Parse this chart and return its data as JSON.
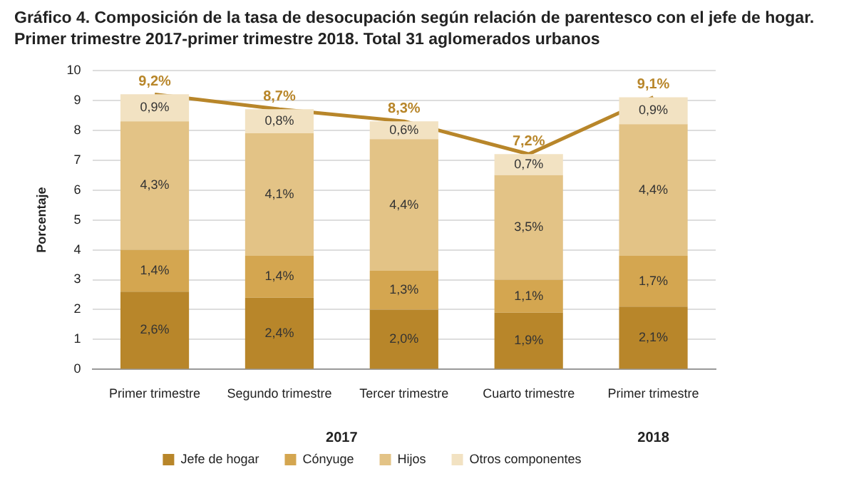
{
  "chart_data": {
    "type": "bar",
    "stacked": true,
    "title": "Gráfico 4.  Composición de la tasa de desocupación según relación de parentesco con el jefe de hogar.\nPrimer trimestre 2017-primer trimestre 2018. Total 31 aglomerados urbanos",
    "ylabel": "Porcentaje",
    "categories": [
      "Primer trimestre",
      "Segundo trimestre",
      "Tercer trimestre",
      "Cuarto trimestre",
      "Primer trimestre"
    ],
    "series": [
      {
        "name": "Jefe de hogar",
        "color": "#b8862a",
        "values": [
          2.6,
          2.4,
          2.0,
          1.9,
          2.1
        ],
        "value_labels": [
          "2,6%",
          "2,4%",
          "2,0%",
          "1,9%",
          "2,1%"
        ]
      },
      {
        "name": "Cónyuge",
        "color": "#d4a650",
        "values": [
          1.4,
          1.4,
          1.3,
          1.1,
          1.7
        ],
        "value_labels": [
          "1,4%",
          "1,4%",
          "1,3%",
          "1,1%",
          "1,7%"
        ]
      },
      {
        "name": "Hijos",
        "color": "#e3c386",
        "values": [
          4.3,
          4.1,
          4.4,
          3.5,
          4.4
        ],
        "value_labels": [
          "4,3%",
          "4,1%",
          "4,4%",
          "3,5%",
          "4,4%"
        ]
      },
      {
        "name": "Otros componentes",
        "color": "#f2e2c2",
        "values": [
          0.9,
          0.8,
          0.6,
          0.7,
          0.9
        ],
        "value_labels": [
          "0,9%",
          "0,8%",
          "0,6%",
          "0,7%",
          "0,9%"
        ]
      },
      {
        "type": "line",
        "color": "#b8862a",
        "values": [
          9.2,
          8.7,
          8.3,
          7.2,
          9.1
        ],
        "value_labels": [
          "9,2%",
          "8,7%",
          "8,3%",
          "7,2%",
          "9,1%"
        ]
      }
    ],
    "ylim": [
      0,
      10
    ],
    "yticks": [
      0,
      1,
      2,
      3,
      4,
      5,
      6,
      7,
      8,
      9,
      10
    ],
    "grid": "y",
    "legend": "bottom",
    "marker": "none",
    "line_style": "solid",
    "annotations": [
      "2017",
      "2018"
    ]
  }
}
